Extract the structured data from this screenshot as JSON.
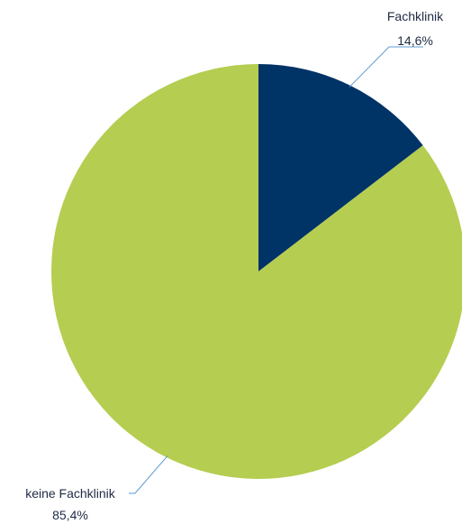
{
  "chart_data": {
    "type": "pie",
    "categories": [
      "Fachklinik",
      "keine Fachklinik"
    ],
    "values": [
      14.6,
      85.4
    ],
    "value_labels": [
      "14,6%",
      "85,4%"
    ],
    "colors": [
      "#003366",
      "#b5cd50"
    ],
    "leader_line_color": "#5b9bd5",
    "start_angle_deg": 0,
    "direction": "clockwise",
    "legend": "none",
    "title": ""
  }
}
